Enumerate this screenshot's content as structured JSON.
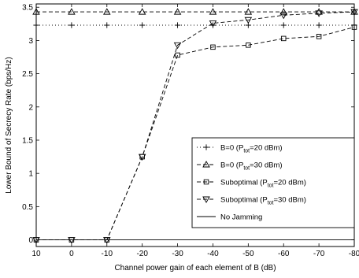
{
  "chart_data": {
    "type": "line",
    "xlabel": "Channel power gain of each element of B (dB)",
    "ylabel": "Lower Bound of Secrecy Rate (bps/Hz)",
    "x": [
      10,
      0,
      -10,
      -20,
      -30,
      -40,
      -50,
      -60,
      -70,
      -80
    ],
    "x_tick_labels": [
      "10",
      "0",
      "-10",
      "-20",
      "-30",
      "-40",
      "-50",
      "-60",
      "-70",
      "-80"
    ],
    "xlim": [
      10,
      -80
    ],
    "ylim": [
      -0.1,
      3.55
    ],
    "y_ticks": [
      0,
      0.5,
      1,
      1.5,
      2,
      2.5,
      3,
      3.5
    ],
    "y_tick_labels": [
      "0",
      "0.5",
      "1",
      "1.5",
      "2",
      "2.5",
      "3",
      "3.5"
    ],
    "grid": false,
    "legend_position": "bottom-right",
    "series": [
      {
        "name_main": "B=0 (P",
        "name_sub": "tot",
        "name_tail": "=20 dBm)",
        "line_style": "dotted",
        "marker": "plus",
        "values": [
          3.23,
          3.23,
          3.23,
          3.23,
          3.23,
          3.23,
          3.23,
          3.23,
          3.23,
          3.23
        ]
      },
      {
        "name_main": "B=0 (P",
        "name_sub": "tot",
        "name_tail": "=30 dBm)",
        "line_style": "dashed",
        "marker": "triangle-up",
        "values": [
          3.43,
          3.43,
          3.43,
          3.43,
          3.43,
          3.43,
          3.43,
          3.43,
          3.43,
          3.43
        ]
      },
      {
        "name_main": "Suboptimal (P",
        "name_sub": "tot",
        "name_tail": "=20 dBm)",
        "line_style": "dashed",
        "marker": "square",
        "values": [
          0.0,
          0.0,
          0.0,
          1.25,
          2.78,
          2.9,
          2.93,
          3.03,
          3.06,
          3.2
        ]
      },
      {
        "name_main": "Suboptimal (P",
        "name_sub": "tot",
        "name_tail": "=30 dBm)",
        "line_style": "dashed",
        "marker": "triangle-down",
        "values": [
          0.0,
          0.0,
          0.0,
          1.25,
          2.93,
          3.26,
          3.31,
          3.38,
          3.41,
          3.43
        ]
      },
      {
        "name_main": "No Jamming",
        "name_sub": "",
        "name_tail": "",
        "line_style": "solid",
        "marker": "none",
        "values": [
          0,
          0,
          0,
          0,
          0,
          0,
          0,
          0,
          0,
          0
        ]
      }
    ]
  }
}
